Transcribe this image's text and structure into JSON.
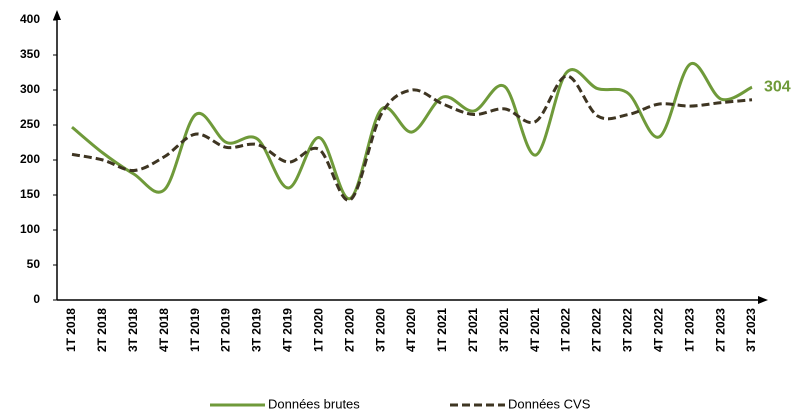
{
  "chart_data": {
    "type": "line",
    "categories": [
      "1T 2018",
      "2T 2018",
      "3T 2018",
      "4T 2018",
      "1T 2019",
      "2T 2019",
      "3T 2019",
      "4T 2019",
      "1T 2020",
      "2T 2020",
      "3T 2020",
      "4T 2020",
      "1T 2021",
      "2T 2021",
      "3T 2021",
      "4T 2021",
      "1T 2022",
      "2T 2022",
      "3T 2022",
      "4T 2022",
      "1T 2023",
      "2T 2023",
      "3T 2023"
    ],
    "series": [
      {
        "name": "Données brutes",
        "color": "#6f9a3a",
        "dash": false,
        "values": [
          247,
          210,
          180,
          158,
          265,
          225,
          230,
          160,
          232,
          145,
          272,
          240,
          290,
          270,
          305,
          207,
          325,
          302,
          295,
          233,
          337,
          287,
          304
        ]
      },
      {
        "name": "Données CVS",
        "color": "#3e3522",
        "dash": true,
        "values": [
          208,
          200,
          185,
          205,
          237,
          218,
          222,
          197,
          215,
          143,
          265,
          300,
          280,
          265,
          273,
          255,
          320,
          263,
          265,
          280,
          277,
          282,
          286
        ]
      }
    ],
    "ylim": [
      0,
      400
    ],
    "yticks": [
      0,
      50,
      100,
      150,
      200,
      250,
      300,
      350,
      400
    ],
    "grid": false
  }
}
